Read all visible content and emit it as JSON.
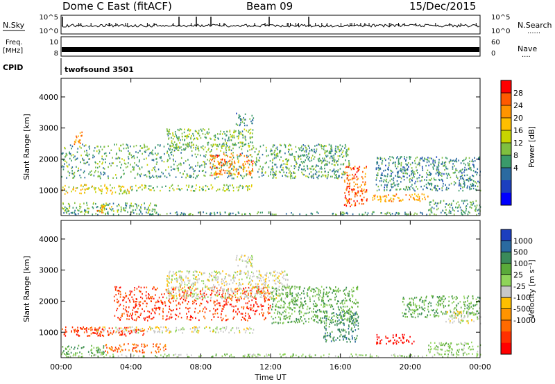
{
  "header": {
    "station": "Dome C East (fitACF)",
    "beam": "Beam 09",
    "date": "15/Dec/2015"
  },
  "top_panels": {
    "nsky": {
      "left_label": "N.Sky",
      "left_ticks": [
        "10^5",
        "10^0"
      ],
      "right_label": "N.Search",
      "right_ticks": [
        "10^5",
        "10^0"
      ]
    },
    "freq": {
      "left_label_line1": "Freq.",
      "left_label_line2": "[MHz]",
      "left_ticks": [
        "10",
        "8"
      ],
      "right_label": "Nave",
      "right_ticks": [
        "60",
        "0"
      ]
    },
    "cpid": {
      "label": "CPID",
      "value": "twofsound 3501"
    }
  },
  "chart_data": [
    {
      "type": "heatmap",
      "panel": "power",
      "ylabel": "Slant Range [km]",
      "xlabel": "",
      "x_tick_labels": [
        "00:00",
        "04:00",
        "08:00",
        "12:00",
        "16:00",
        "20:00",
        "00:00"
      ],
      "y_tick_labels": [
        "1000",
        "2000",
        "3000",
        "4000"
      ],
      "xlim_hours": [
        0,
        24
      ],
      "ylim_km": [
        180,
        4600
      ],
      "colorbar": {
        "label": "Power [dB]",
        "tick_labels": [
          "28",
          "24",
          "20",
          "16",
          "12",
          "8",
          "4"
        ],
        "colors": [
          "#ff0000",
          "#ff5a00",
          "#ff9400",
          "#ffbf00",
          "#c8d400",
          "#7fbf3f",
          "#3a9a6a",
          "#2a6aa0",
          "#1c3fbf",
          "#0000ff"
        ]
      },
      "echo_regions": [
        {
          "x_hours": [
            0.0,
            24.0
          ],
          "y_km": [
            220,
            320
          ],
          "level": 10
        },
        {
          "x_hours": [
            0.0,
            5.5
          ],
          "y_km": [
            320,
            620
          ],
          "level": 12
        },
        {
          "x_hours": [
            2.0,
            3.0
          ],
          "y_km": [
            300,
            540
          ],
          "level": 22
        },
        {
          "x_hours": [
            0.0,
            4.0
          ],
          "y_km": [
            900,
            1200
          ],
          "level": 18
        },
        {
          "x_hours": [
            4.0,
            11.0
          ],
          "y_km": [
            1000,
            1200
          ],
          "level": 14
        },
        {
          "x_hours": [
            0.0,
            12.0
          ],
          "y_km": [
            1400,
            2500
          ],
          "level": 11
        },
        {
          "x_hours": [
            8.5,
            11.0
          ],
          "y_km": [
            1500,
            2200
          ],
          "level": 24
        },
        {
          "x_hours": [
            6.0,
            11.0
          ],
          "y_km": [
            2300,
            3000
          ],
          "level": 13
        },
        {
          "x_hours": [
            10.0,
            11.0
          ],
          "y_km": [
            3100,
            3500
          ],
          "level": 9
        },
        {
          "x_hours": [
            12.0,
            16.5
          ],
          "y_km": [
            1400,
            2500
          ],
          "level": 11
        },
        {
          "x_hours": [
            16.2,
            17.5
          ],
          "y_km": [
            500,
            1800
          ],
          "level": 26
        },
        {
          "x_hours": [
            17.8,
            21.0
          ],
          "y_km": [
            650,
            900
          ],
          "level": 22
        },
        {
          "x_hours": [
            18.0,
            24.0
          ],
          "y_km": [
            1000,
            2100
          ],
          "level": 9
        },
        {
          "x_hours": [
            21.0,
            24.0
          ],
          "y_km": [
            320,
            700
          ],
          "level": 10
        },
        {
          "x_hours": [
            0.7,
            1.2
          ],
          "y_km": [
            2500,
            2900
          ],
          "level": 24
        }
      ]
    },
    {
      "type": "heatmap",
      "panel": "velocity",
      "ylabel": "Slant Range [km]",
      "xlabel": "Time UT",
      "x_tick_labels": [
        "00:00",
        "04:00",
        "08:00",
        "12:00",
        "16:00",
        "20:00",
        "00:00"
      ],
      "y_tick_labels": [
        "1000",
        "2000",
        "3000",
        "4000"
      ],
      "xlim_hours": [
        0,
        24
      ],
      "ylim_km": [
        180,
        4600
      ],
      "colorbar": {
        "label": "Velocity [m s⁻¹]",
        "tick_labels": [
          "1000",
          "500",
          "100",
          "25",
          "-25",
          "-100",
          "-500",
          "-1000"
        ],
        "colors": [
          "#1c3fbf",
          "#2a6aa0",
          "#3a8a5a",
          "#5aaa3a",
          "#8fd45a",
          "#c8c8c8",
          "#ffbf00",
          "#ff9400",
          "#ff6a00",
          "#ff3000",
          "#ff0000"
        ]
      },
      "echo_regions": [
        {
          "x_hours": [
            0.0,
            24.0
          ],
          "y_km": [
            220,
            320
          ],
          "level": 1
        },
        {
          "x_hours": [
            0.0,
            2.5
          ],
          "y_km": [
            320,
            600
          ],
          "level": 2
        },
        {
          "x_hours": [
            2.5,
            6.0
          ],
          "y_km": [
            350,
            650
          ],
          "level": -3
        },
        {
          "x_hours": [
            0.0,
            5.0
          ],
          "y_km": [
            900,
            1200
          ],
          "level": -4
        },
        {
          "x_hours": [
            2.0,
            11.0
          ],
          "y_km": [
            1000,
            1200
          ],
          "level": 0
        },
        {
          "x_hours": [
            3.0,
            12.0
          ],
          "y_km": [
            1400,
            2500
          ],
          "level": -4
        },
        {
          "x_hours": [
            6.0,
            13.0
          ],
          "y_km": [
            2100,
            3000
          ],
          "level": 0
        },
        {
          "x_hours": [
            10.0,
            11.0
          ],
          "y_km": [
            3100,
            3500
          ],
          "level": 0
        },
        {
          "x_hours": [
            12.0,
            17.0
          ],
          "y_km": [
            1300,
            2500
          ],
          "level": 2
        },
        {
          "x_hours": [
            15.0,
            17.0
          ],
          "y_km": [
            700,
            1700
          ],
          "level": 3
        },
        {
          "x_hours": [
            18.0,
            20.2
          ],
          "y_km": [
            650,
            950
          ],
          "level": -5
        },
        {
          "x_hours": [
            19.5,
            24.0
          ],
          "y_km": [
            1500,
            2200
          ],
          "level": 2
        },
        {
          "x_hours": [
            21.0,
            24.0
          ],
          "y_km": [
            300,
            700
          ],
          "level": 1
        },
        {
          "x_hours": [
            22.0,
            24.0
          ],
          "y_km": [
            1300,
            1700
          ],
          "level": 0
        }
      ]
    }
  ]
}
